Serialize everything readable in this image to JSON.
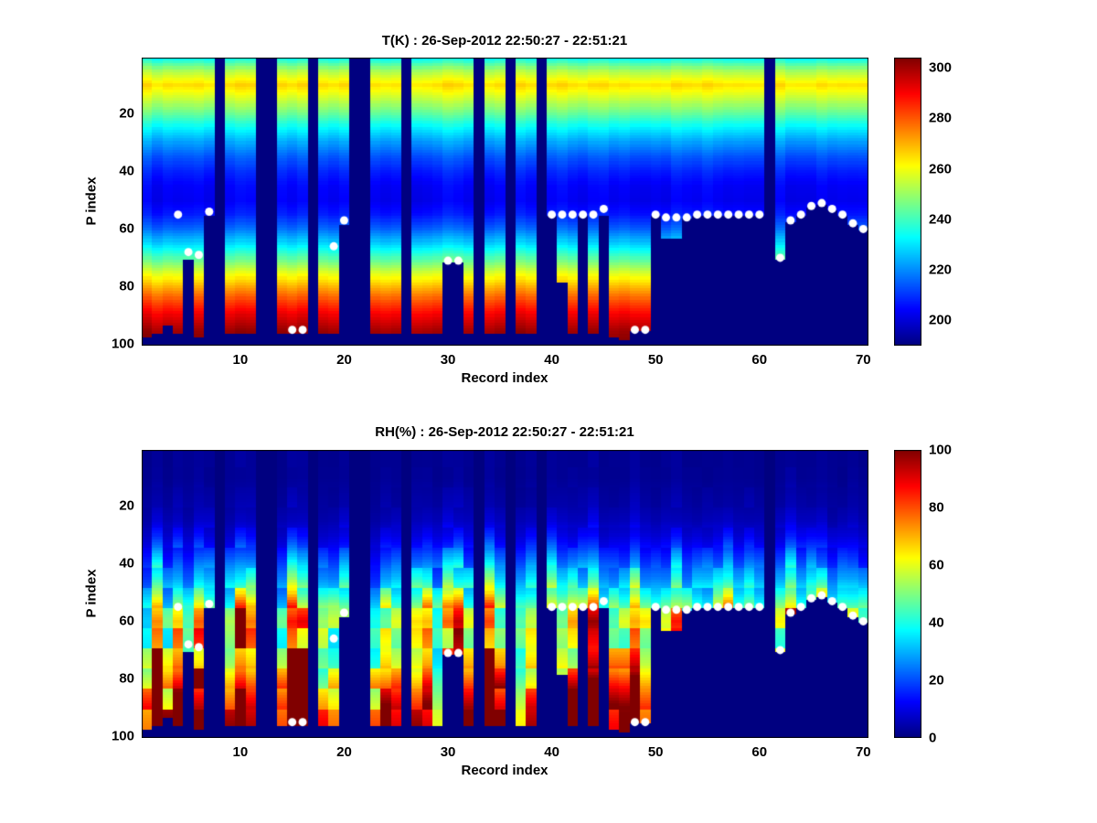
{
  "chart_data": [
    {
      "type": "heatmap",
      "title": "T(K) : 26-Sep-2012 22:50:27 - 22:51:21",
      "xlabel": "Record index",
      "ylabel": "P index",
      "x_range": [
        1,
        70
      ],
      "y_range": [
        1,
        100
      ],
      "y_direction": "reversed",
      "x_ticks": [
        10,
        20,
        30,
        40,
        50,
        60,
        70
      ],
      "y_ticks": [
        20,
        40,
        60,
        80,
        100
      ],
      "colormap": "jet",
      "clim": [
        190,
        304
      ],
      "colorbar_ticks": [
        200,
        220,
        240,
        260,
        280,
        300
      ],
      "units": "K",
      "profile_p": [
        0,
        5,
        10,
        15,
        20,
        25,
        30,
        35,
        40,
        45,
        50,
        55,
        60,
        65,
        70,
        75,
        80,
        85,
        90,
        95,
        100
      ],
      "profile_values": [
        230,
        252,
        265,
        255,
        244,
        232,
        222,
        214,
        208,
        204,
        203,
        207,
        216,
        228,
        242,
        257,
        270,
        282,
        292,
        300,
        304
      ],
      "column_variation": 0.04,
      "enhanced_records": []
    },
    {
      "type": "heatmap",
      "title": "RH(%) : 26-Sep-2012 22:50:27 - 22:51:21",
      "xlabel": "Record index",
      "ylabel": "P index",
      "x_range": [
        1,
        70
      ],
      "y_range": [
        1,
        100
      ],
      "y_direction": "reversed",
      "x_ticks": [
        10,
        20,
        30,
        40,
        50,
        60,
        70
      ],
      "y_ticks": [
        20,
        40,
        60,
        80,
        100
      ],
      "colormap": "jet",
      "clim": [
        0,
        100
      ],
      "colorbar_ticks": [
        0,
        20,
        40,
        60,
        80,
        100
      ],
      "units": "%",
      "profile_p": [
        0,
        5,
        10,
        15,
        20,
        25,
        30,
        35,
        40,
        45,
        50,
        55,
        60,
        65,
        70,
        75,
        80,
        85,
        90,
        95,
        100
      ],
      "profile_values": [
        2,
        2,
        2,
        3,
        4,
        6,
        10,
        16,
        24,
        32,
        42,
        55,
        62,
        58,
        55,
        60,
        70,
        80,
        88,
        92,
        95
      ],
      "column_variation": 0.5,
      "enhanced_records": [
        1,
        2,
        3,
        14,
        15,
        16,
        23,
        24,
        25,
        34,
        35,
        45,
        46,
        47,
        62
      ]
    }
  ],
  "records": {
    "count": 70,
    "p_levels": 100,
    "masked_records": [
      8,
      12,
      13,
      17,
      21,
      22,
      26,
      33,
      36,
      39,
      61
    ],
    "surface_p": [
      97,
      96,
      93,
      96,
      70,
      97,
      55,
      null,
      96,
      96,
      96,
      null,
      null,
      96,
      96,
      96,
      null,
      96,
      96,
      58,
      null,
      null,
      96,
      96,
      96,
      null,
      96,
      96,
      96,
      71,
      71,
      96,
      null,
      96,
      96,
      null,
      96,
      96,
      null,
      55,
      78,
      96,
      55,
      96,
      55,
      97,
      98,
      95,
      95,
      55,
      63,
      63,
      56,
      55,
      55,
      55,
      55,
      55,
      55,
      55,
      null,
      70,
      57,
      55,
      52,
      51,
      53,
      55,
      58,
      60
    ],
    "markers": [
      {
        "record": 4,
        "p": 55
      },
      {
        "record": 5,
        "p": 68
      },
      {
        "record": 6,
        "p": 69
      },
      {
        "record": 7,
        "p": 54
      },
      {
        "record": 15,
        "p": 95
      },
      {
        "record": 16,
        "p": 95
      },
      {
        "record": 19,
        "p": 66
      },
      {
        "record": 20,
        "p": 57
      },
      {
        "record": 30,
        "p": 71
      },
      {
        "record": 31,
        "p": 71
      },
      {
        "record": 40,
        "p": 55
      },
      {
        "record": 41,
        "p": 55
      },
      {
        "record": 42,
        "p": 55
      },
      {
        "record": 43,
        "p": 55
      },
      {
        "record": 44,
        "p": 55
      },
      {
        "record": 45,
        "p": 53
      },
      {
        "record": 48,
        "p": 95
      },
      {
        "record": 49,
        "p": 95
      },
      {
        "record": 50,
        "p": 55
      },
      {
        "record": 51,
        "p": 56
      },
      {
        "record": 52,
        "p": 56
      },
      {
        "record": 53,
        "p": 56
      },
      {
        "record": 54,
        "p": 55
      },
      {
        "record": 55,
        "p": 55
      },
      {
        "record": 56,
        "p": 55
      },
      {
        "record": 57,
        "p": 55
      },
      {
        "record": 58,
        "p": 55
      },
      {
        "record": 59,
        "p": 55
      },
      {
        "record": 60,
        "p": 55
      },
      {
        "record": 62,
        "p": 70
      },
      {
        "record": 63,
        "p": 57
      },
      {
        "record": 64,
        "p": 55
      },
      {
        "record": 65,
        "p": 52
      },
      {
        "record": 66,
        "p": 51
      },
      {
        "record": 67,
        "p": 53
      },
      {
        "record": 68,
        "p": 55
      },
      {
        "record": 69,
        "p": 58
      },
      {
        "record": 70,
        "p": 60
      }
    ],
    "marker_color": "#ffffff"
  },
  "colors": {
    "background": "#ffffff",
    "text": "#000000",
    "nodata": "#000080"
  }
}
